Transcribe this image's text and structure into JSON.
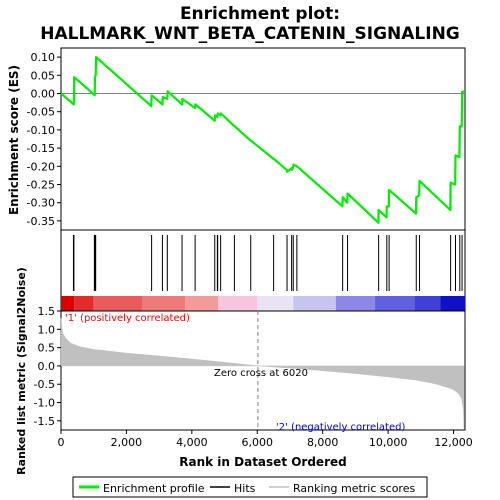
{
  "chart_data": {
    "type": "line",
    "title_lines": [
      "Enrichment plot:",
      "HALLMARK_WNT_BETA_CATENIN_SIGNALING"
    ],
    "panels": {
      "es": {
        "ylabel": "Enrichment score (ES)",
        "ylim": [
          -0.375,
          0.125
        ],
        "yticks": [
          0.1,
          0.05,
          0.0,
          -0.05,
          -0.1,
          -0.15,
          -0.2,
          -0.25,
          -0.3,
          -0.35
        ],
        "ytick_labels": [
          "0.10",
          "0.05",
          "0.00",
          "-0.05",
          "-0.10",
          "-0.15",
          "-0.20",
          "-0.25",
          "-0.30",
          "-0.35"
        ],
        "series": [
          {
            "name": "Enrichment profile",
            "color": "#00ee00",
            "x": [
              0,
              390,
              400,
              1030,
              1040,
              1060,
              1070,
              2760,
              2770,
              3100,
              3110,
              3250,
              3260,
              3700,
              3710,
              4100,
              4110,
              4700,
              4710,
              4780,
              4790,
              4880,
              4890,
              5300,
              5310,
              5800,
              5810,
              6500,
              6510,
              6900,
              6910,
              7050,
              7060,
              7100,
              7110,
              7200,
              7210,
              8600,
              8610,
              8750,
              8760,
              9700,
              9710,
              9950,
              9960,
              10020,
              10030,
              10850,
              10860,
              10950,
              10960,
              11900,
              11910,
              12050,
              12060,
              12180,
              12190,
              12250,
              12260,
              12320
            ],
            "y": [
              0.0,
              -0.03,
              0.045,
              -0.005,
              0.045,
              0.05,
              0.1,
              -0.035,
              -0.005,
              -0.03,
              -0.01,
              -0.015,
              0.006,
              -0.03,
              -0.015,
              -0.04,
              -0.03,
              -0.075,
              -0.06,
              -0.065,
              -0.055,
              -0.06,
              -0.055,
              -0.09,
              -0.09,
              -0.13,
              -0.13,
              -0.18,
              -0.18,
              -0.21,
              -0.215,
              -0.205,
              -0.21,
              -0.2,
              -0.195,
              -0.2,
              -0.2,
              -0.31,
              -0.285,
              -0.3,
              -0.275,
              -0.355,
              -0.32,
              -0.34,
              -0.31,
              -0.31,
              -0.265,
              -0.33,
              -0.285,
              -0.28,
              -0.24,
              -0.32,
              -0.245,
              -0.25,
              -0.17,
              -0.175,
              -0.09,
              -0.09,
              0.005,
              0.005
            ]
          }
        ],
        "zero_line": 0.0
      },
      "hits": {
        "legend_name": "Hits",
        "x": [
          380,
          395,
          1020,
          1035,
          1050,
          1060,
          2770,
          3100,
          3250,
          3700,
          4100,
          4700,
          4780,
          4790,
          4880,
          5300,
          5800,
          6500,
          6910,
          7050,
          7100,
          7210,
          8610,
          8760,
          9710,
          9960,
          10030,
          10860,
          10960,
          11910,
          12060,
          12190,
          12260
        ]
      },
      "metric_bar": {
        "segments": [
          {
            "x0": 0,
            "x1": 400,
            "color": "#dd0000"
          },
          {
            "x0": 400,
            "x1": 1000,
            "color": "#e22c2c"
          },
          {
            "x0": 1000,
            "x1": 2500,
            "color": "#ea5c5c"
          },
          {
            "x0": 2500,
            "x1": 3800,
            "color": "#ef7a7a"
          },
          {
            "x0": 3800,
            "x1": 4800,
            "color": "#f39a9a"
          },
          {
            "x0": 4800,
            "x1": 6000,
            "color": "#f8c4e0"
          },
          {
            "x0": 6000,
            "x1": 7100,
            "color": "#e8e4f4"
          },
          {
            "x0": 7100,
            "x1": 8400,
            "color": "#c8c4f0"
          },
          {
            "x0": 8400,
            "x1": 9600,
            "color": "#8c88e8"
          },
          {
            "x0": 9600,
            "x1": 10800,
            "color": "#6060e0"
          },
          {
            "x0": 10800,
            "x1": 11600,
            "color": "#4040d8"
          },
          {
            "x0": 11600,
            "x1": 12350,
            "color": "#1010c8"
          }
        ]
      },
      "ranked": {
        "ylabel": "Ranked list metric (Signal2Noise)",
        "xlabel": "Rank in Dataset Ordered",
        "ylim": [
          -1.75,
          1.5
        ],
        "yticks": [
          1.5,
          1.0,
          0.5,
          0.0,
          -0.5,
          -1.0,
          -1.5
        ],
        "ytick_labels": [
          "1.5",
          "1.0",
          "0.5",
          "0.0",
          "-0.5",
          "-1.0",
          "-1.5"
        ],
        "legend_name": "Ranking metric scores",
        "fill_color": "#c0c0c0",
        "x": [
          0,
          50,
          150,
          300,
          600,
          1000,
          2000,
          3000,
          4000,
          5000,
          6020,
          7000,
          8000,
          9000,
          10000,
          10800,
          11400,
          11800,
          12000,
          12150,
          12250,
          12300,
          12320
        ],
        "y": [
          1.3,
          0.9,
          0.75,
          0.62,
          0.52,
          0.45,
          0.35,
          0.27,
          0.19,
          0.1,
          0.0,
          -0.06,
          -0.13,
          -0.21,
          -0.3,
          -0.38,
          -0.48,
          -0.58,
          -0.65,
          -0.75,
          -0.9,
          -1.2,
          -1.7
        ],
        "zero_cross_x": 6020,
        "zero_cross_label": "Zero cross at 6020",
        "pos_label": "'1' (positively correlated)",
        "neg_label": "'2' (negatively correlated)"
      }
    },
    "xlim": [
      0,
      12350
    ],
    "xticks": [
      0,
      2000,
      4000,
      6000,
      8000,
      10000,
      12000
    ],
    "xtick_labels": [
      "0",
      "2,000",
      "4,000",
      "6,000",
      "8,000",
      "10,000",
      "12,000"
    ],
    "legend": {
      "placement": "bottom",
      "entries": [
        "Enrichment profile",
        "Hits",
        "Ranking metric scores"
      ]
    },
    "colors": {
      "profile": "#00ee00",
      "pos_label": "#ff0000",
      "neg_label": "#0000ff",
      "zero_line": "#808080",
      "ranked_fill": "#c0c0c0"
    }
  }
}
